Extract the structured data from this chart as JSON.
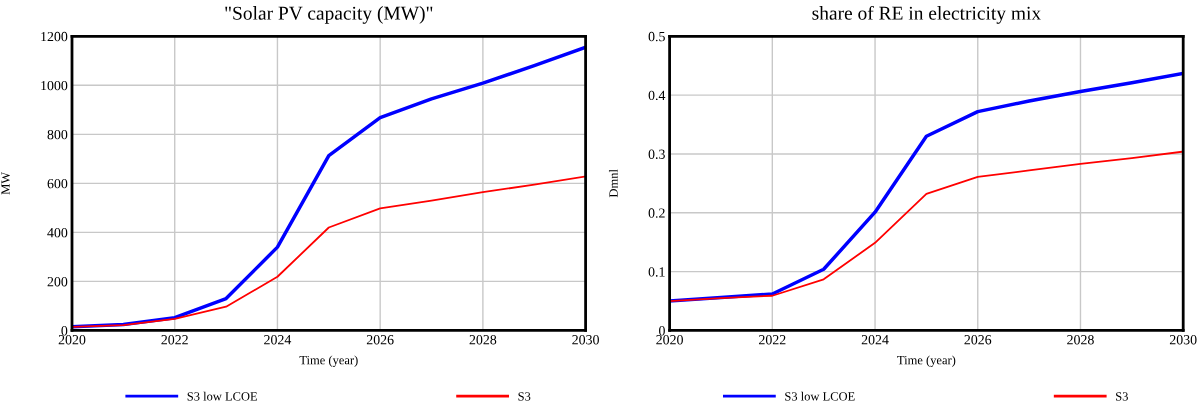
{
  "chart_data": [
    {
      "type": "line",
      "title": "\"Solar PV capacity (MW)\"",
      "xlabel": "Time (year)",
      "ylabel": "MW",
      "x": [
        2020,
        2021,
        2022,
        2023,
        2024,
        2025,
        2026,
        2027,
        2028,
        2029,
        2030
      ],
      "series": [
        {
          "name": "S3 low LCOE",
          "color": "#0000ff",
          "values": [
            15,
            24,
            52,
            130,
            340,
            713,
            868,
            945,
            1009,
            1080,
            1155
          ]
        },
        {
          "name": "S3",
          "color": "#ff0000",
          "values": [
            15,
            22,
            47,
            97,
            219,
            420,
            498,
            530,
            564,
            595,
            628
          ]
        }
      ],
      "xlim": [
        2020,
        2030
      ],
      "xticks": [
        2020,
        2022,
        2024,
        2026,
        2028,
        2030
      ],
      "ylim": [
        0,
        1200
      ],
      "yticks": [
        0,
        200,
        400,
        600,
        800,
        1000,
        1200
      ],
      "grid": true,
      "legend": "bottom"
    },
    {
      "type": "line",
      "title": "share of RE in electricity mix",
      "xlabel": "Time (year)",
      "ylabel": "Dmnl",
      "x": [
        2020,
        2021,
        2022,
        2023,
        2024,
        2025,
        2026,
        2027,
        2028,
        2029,
        2030
      ],
      "series": [
        {
          "name": "S3 low LCOE",
          "color": "#0000ff",
          "values": [
            0.05,
            0.056,
            0.062,
            0.104,
            0.201,
            0.33,
            0.372,
            0.39,
            0.406,
            0.421,
            0.437
          ]
        },
        {
          "name": "S3",
          "color": "#ff0000",
          "values": [
            0.05,
            0.055,
            0.059,
            0.087,
            0.149,
            0.232,
            0.261,
            0.272,
            0.283,
            0.293,
            0.304
          ]
        }
      ],
      "xlim": [
        2020,
        2030
      ],
      "xticks": [
        2020,
        2022,
        2024,
        2026,
        2028,
        2030
      ],
      "ylim": [
        0,
        0.5
      ],
      "yticks": [
        0,
        0.1,
        0.2,
        0.3,
        0.4,
        0.5
      ],
      "grid": true,
      "legend": "bottom"
    }
  ]
}
